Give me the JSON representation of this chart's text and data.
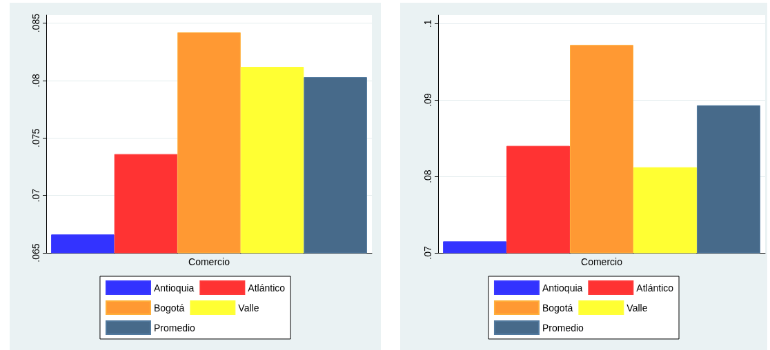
{
  "chart_data": [
    {
      "type": "bar",
      "categories": [
        "Comercio"
      ],
      "ylim": [
        0.065,
        0.0857
      ],
      "yticks": [
        {
          "value": 0.065,
          "label": ".065"
        },
        {
          "value": 0.07,
          "label": ".07"
        },
        {
          "value": 0.075,
          "label": ".075"
        },
        {
          "value": 0.08,
          "label": ".08"
        },
        {
          "value": 0.085,
          "label": ".085"
        }
      ],
      "grid": "y",
      "legend": "bottom",
      "series": [
        {
          "name": "Antioquia",
          "color": "#3333ff",
          "values": [
            0.0666
          ]
        },
        {
          "name": "Atlántico",
          "color": "#ff3333",
          "values": [
            0.0736
          ]
        },
        {
          "name": "Bogotá",
          "color": "#ff9933",
          "values": [
            0.0842
          ]
        },
        {
          "name": "Valle",
          "color": "#ffff33",
          "values": [
            0.0812
          ]
        },
        {
          "name": "Promedio",
          "color": "#476a8a",
          "values": [
            0.0803
          ]
        }
      ]
    },
    {
      "type": "bar",
      "categories": [
        "Comercio"
      ],
      "ylim": [
        0.07,
        0.1011
      ],
      "yticks": [
        {
          "value": 0.07,
          "label": ".07"
        },
        {
          "value": 0.08,
          "label": ".08"
        },
        {
          "value": 0.09,
          "label": ".09"
        },
        {
          "value": 0.1,
          "label": ".1"
        }
      ],
      "grid": "y",
      "legend": "bottom",
      "series": [
        {
          "name": "Antioquia",
          "color": "#3333ff",
          "values": [
            0.0715
          ]
        },
        {
          "name": "Atlántico",
          "color": "#ff3333",
          "values": [
            0.084
          ]
        },
        {
          "name": "Bogotá",
          "color": "#ff9933",
          "values": [
            0.0972
          ]
        },
        {
          "name": "Valle",
          "color": "#ffff33",
          "values": [
            0.0812
          ]
        },
        {
          "name": "Promedio",
          "color": "#476a8a",
          "values": [
            0.0893
          ]
        }
      ]
    }
  ]
}
